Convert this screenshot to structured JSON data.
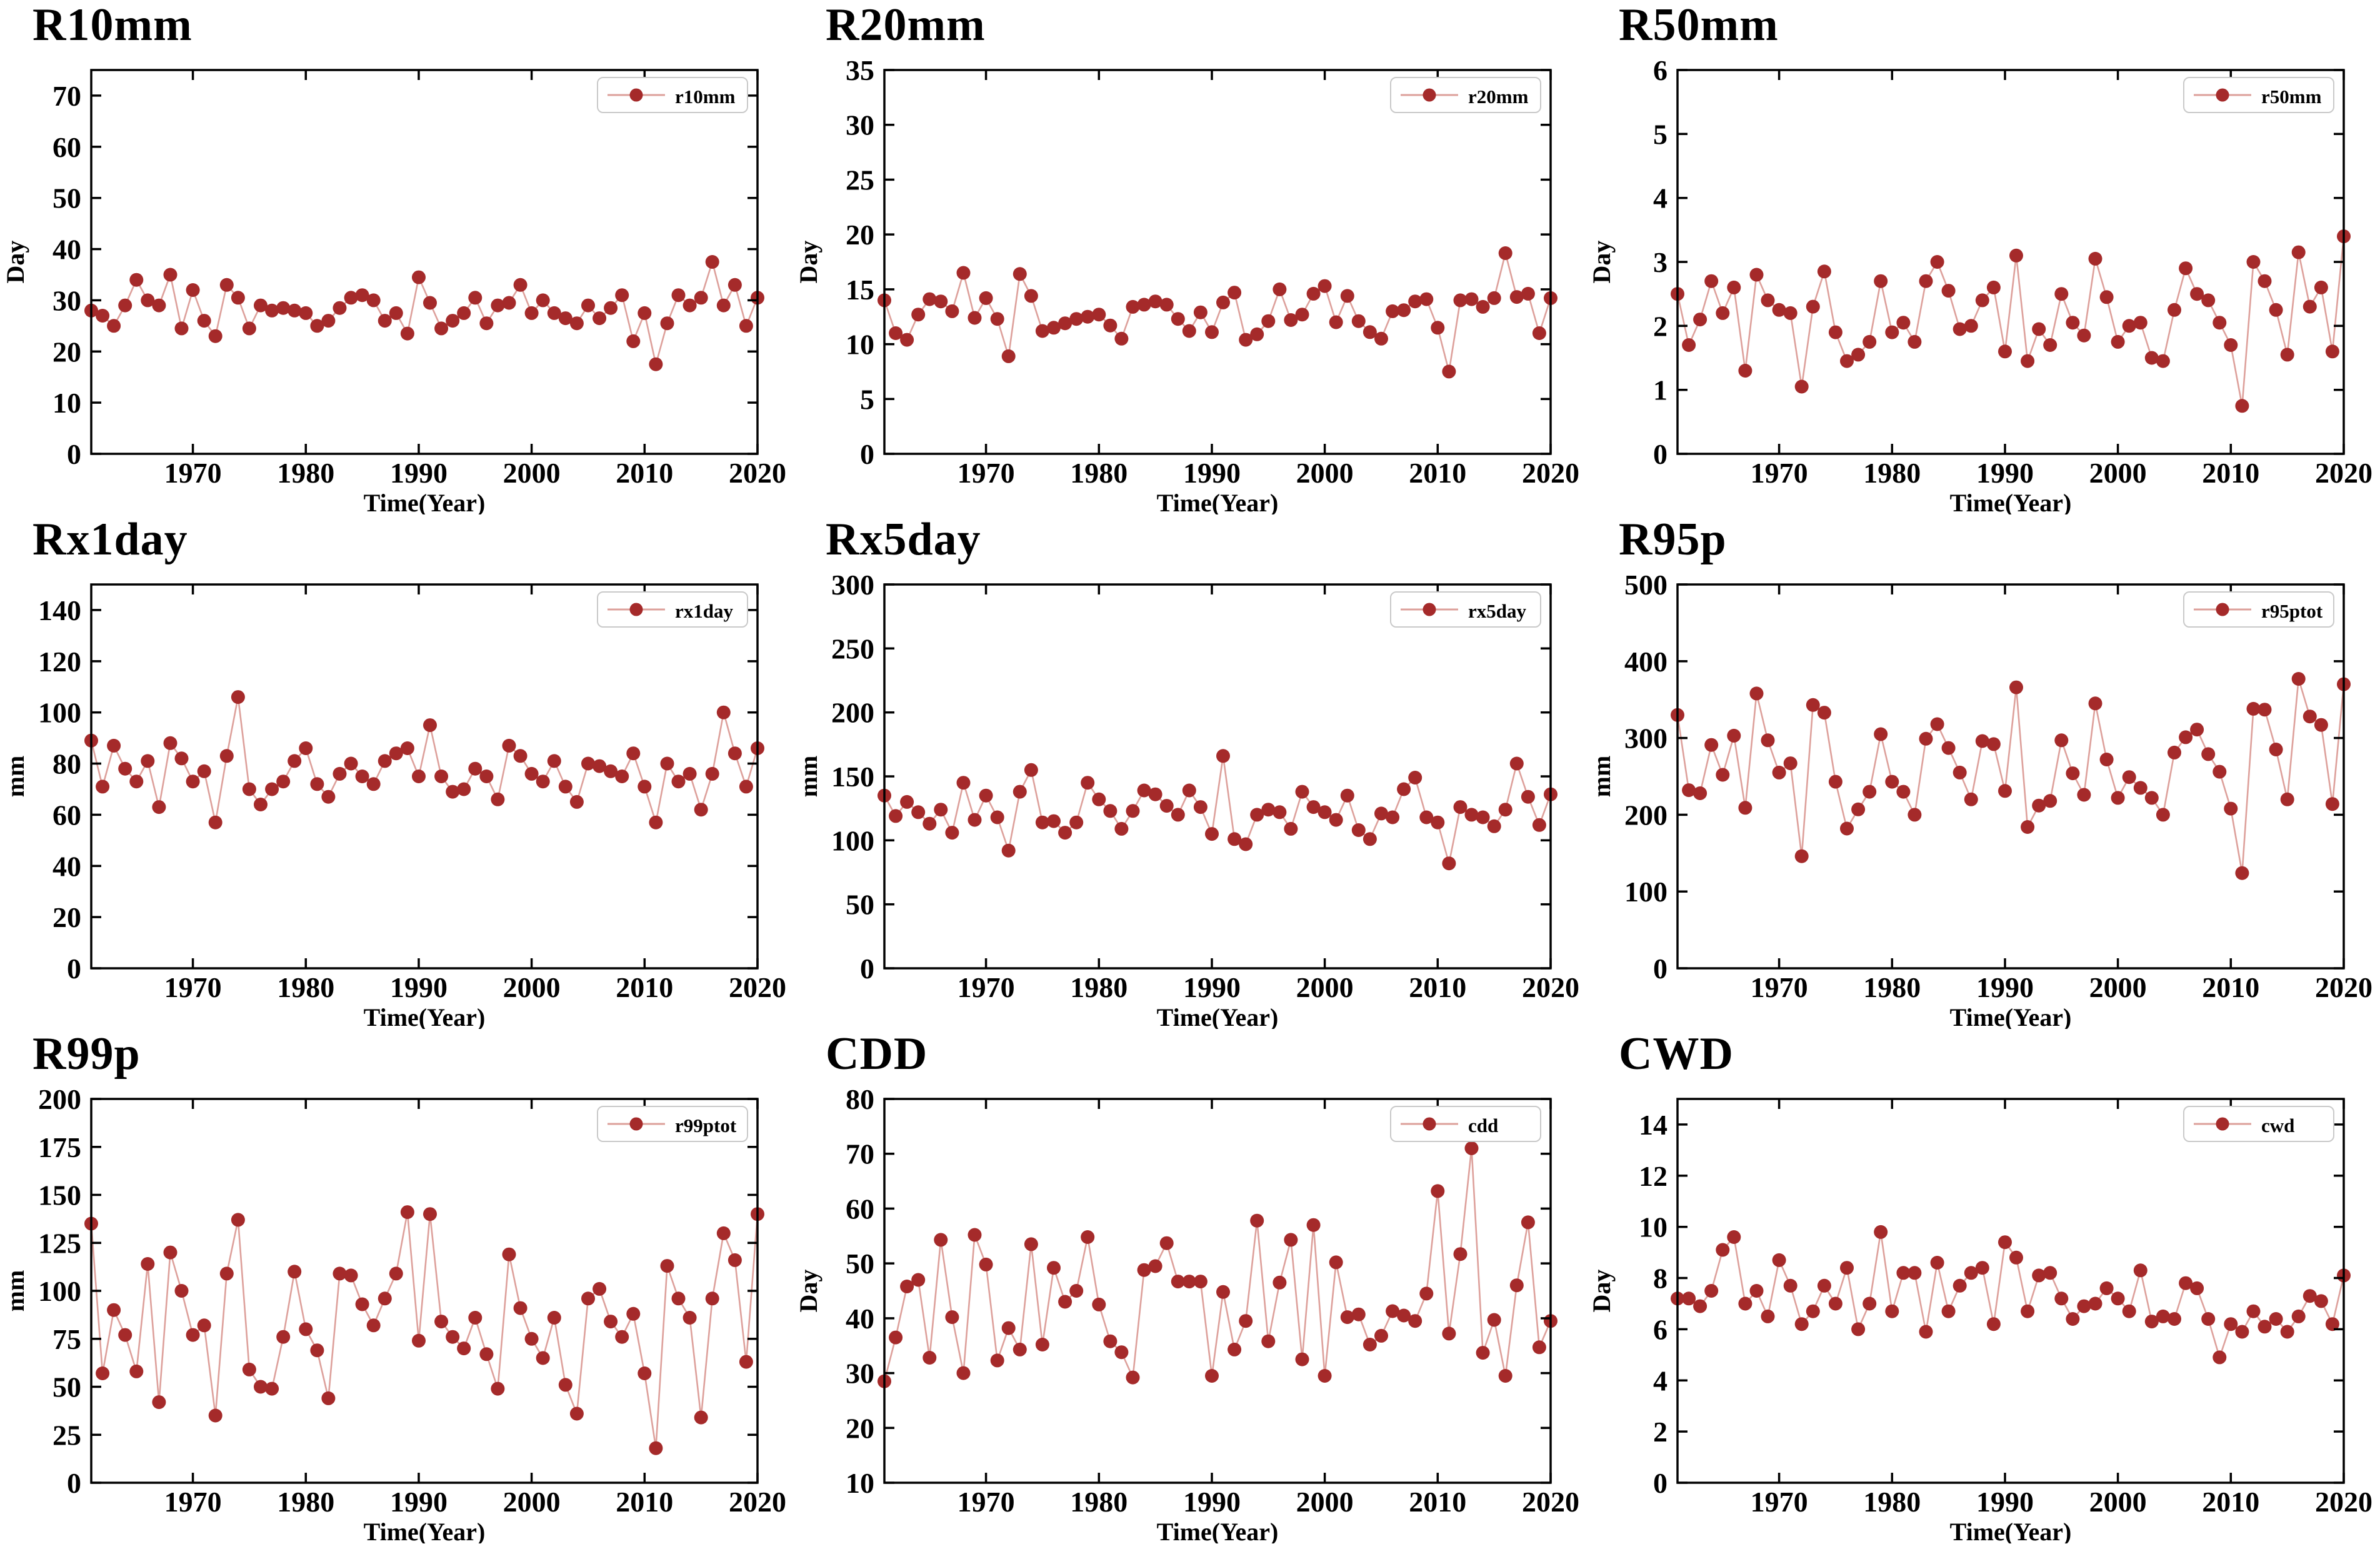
{
  "style": {
    "marker_color": "#A52A2A",
    "line_color": "#DDA09B",
    "axis_color": "#000000",
    "legend_border_color": "#C9C9C9",
    "background": "#FFFFFF"
  },
  "chart_data": {
    "type": "line",
    "xlabel": "Time(Year)",
    "x_range": [
      1961,
      2020
    ],
    "x_ticks": [
      1970,
      1980,
      1990,
      2000,
      2010,
      2020
    ],
    "grid": false,
    "legend_position": "top-right",
    "years": [
      1961,
      1962,
      1963,
      1964,
      1965,
      1966,
      1967,
      1968,
      1969,
      1970,
      1971,
      1972,
      1973,
      1974,
      1975,
      1976,
      1977,
      1978,
      1979,
      1980,
      1981,
      1982,
      1983,
      1984,
      1985,
      1986,
      1987,
      1988,
      1989,
      1990,
      1991,
      1992,
      1993,
      1994,
      1995,
      1996,
      1997,
      1998,
      1999,
      2000,
      2001,
      2002,
      2003,
      2004,
      2005,
      2006,
      2007,
      2008,
      2009,
      2010,
      2011,
      2012,
      2013,
      2014,
      2015,
      2016,
      2017,
      2018,
      2019,
      2020
    ],
    "charts": [
      {
        "id": "r10mm",
        "title": "R10mm",
        "legend": "r10mm",
        "ylabel": "Day",
        "ylim": [
          0,
          75
        ],
        "yticks": [
          0,
          10,
          20,
          30,
          40,
          50,
          60,
          70
        ],
        "values": [
          28,
          27,
          25,
          29,
          34,
          30,
          29,
          35,
          24.5,
          32,
          26,
          23,
          33,
          30.5,
          24.5,
          29,
          28,
          28.5,
          28,
          27.5,
          25,
          26,
          28.5,
          30.5,
          31,
          30,
          26,
          27.5,
          23.5,
          34.5,
          29.5,
          24.5,
          26,
          27.5,
          30.5,
          25.5,
          29,
          29.5,
          33,
          27.5,
          30,
          27.5,
          26.5,
          25.5,
          29,
          26.5,
          28.5,
          31,
          22,
          27.5,
          17.5,
          25.5,
          31,
          29,
          30.5,
          37.5,
          29,
          33,
          25,
          30.5
        ]
      },
      {
        "id": "r20mm",
        "title": "R20mm",
        "legend": "r20mm",
        "ylabel": "Day",
        "ylim": [
          0,
          35
        ],
        "yticks": [
          0,
          5,
          10,
          15,
          20,
          25,
          30,
          35
        ],
        "values": [
          14,
          11,
          10.4,
          12.7,
          14.1,
          13.9,
          13,
          16.5,
          12.4,
          14.2,
          12.3,
          8.9,
          16.4,
          14.4,
          11.2,
          11.5,
          11.9,
          12.3,
          12.5,
          12.7,
          11.7,
          10.5,
          13.4,
          13.6,
          13.9,
          13.6,
          12.3,
          11.2,
          12.9,
          11.1,
          13.8,
          14.7,
          10.4,
          10.9,
          12.1,
          15,
          12.2,
          12.7,
          14.6,
          15.3,
          12,
          14.4,
          12.1,
          11.1,
          10.5,
          13,
          13.1,
          13.9,
          14.1,
          11.5,
          7.5,
          14,
          14.1,
          13.4,
          14.2,
          18.3,
          14.3,
          14.6,
          11,
          14.2
        ]
      },
      {
        "id": "r50mm",
        "title": "R50mm",
        "legend": "r50mm",
        "ylabel": "Day",
        "ylim": [
          0,
          6
        ],
        "yticks": [
          0,
          1,
          2,
          3,
          4,
          5,
          6
        ],
        "values": [
          2.5,
          1.7,
          2.1,
          2.7,
          2.2,
          2.6,
          1.3,
          2.8,
          2.4,
          2.25,
          2.2,
          1.05,
          2.3,
          2.85,
          1.9,
          1.45,
          1.55,
          1.75,
          2.7,
          1.9,
          2.05,
          1.75,
          2.7,
          3.0,
          2.55,
          1.95,
          2.0,
          2.4,
          2.6,
          1.6,
          3.1,
          1.45,
          1.95,
          1.7,
          2.5,
          2.05,
          1.85,
          3.05,
          2.45,
          1.75,
          2.0,
          2.05,
          1.5,
          1.45,
          2.25,
          2.9,
          2.5,
          2.4,
          2.05,
          1.7,
          0.75,
          3.0,
          2.7,
          2.25,
          1.55,
          3.15,
          2.3,
          2.6,
          1.6,
          3.4
        ]
      },
      {
        "id": "rx1day",
        "title": "Rx1day",
        "legend": "rx1day",
        "ylabel": "mm",
        "ylim": [
          0,
          150
        ],
        "yticks": [
          0,
          20,
          40,
          60,
          80,
          100,
          120,
          140
        ],
        "values": [
          89,
          71,
          87,
          78,
          73,
          81,
          63,
          88,
          82,
          73,
          77,
          57,
          83,
          106,
          70,
          64,
          70,
          73,
          81,
          86,
          72,
          67,
          76,
          80,
          75,
          72,
          81,
          84,
          86,
          75,
          95,
          75,
          69,
          70,
          78,
          75,
          66,
          87,
          83,
          76,
          73,
          81,
          71,
          65,
          80,
          79,
          77,
          75,
          84,
          71,
          57,
          80,
          73,
          76,
          62,
          76,
          100,
          84,
          71,
          86
        ]
      },
      {
        "id": "rx5day",
        "title": "Rx5day",
        "legend": "rx5day",
        "ylabel": "mm",
        "ylim": [
          0,
          300
        ],
        "yticks": [
          0,
          50,
          100,
          150,
          200,
          250,
          300
        ],
        "values": [
          135,
          119,
          130,
          122,
          113,
          124,
          106,
          145,
          116,
          135,
          118,
          92,
          138,
          155,
          114,
          115,
          106,
          114,
          145,
          132,
          123,
          109,
          123,
          139,
          136,
          127,
          120,
          139,
          126,
          105,
          166,
          101,
          97,
          120,
          124,
          122,
          109,
          138,
          126,
          122,
          116,
          135,
          108,
          101,
          121,
          118,
          140,
          149,
          118,
          114,
          82,
          126,
          120,
          118,
          111,
          124,
          160,
          134,
          112,
          136
        ]
      },
      {
        "id": "r95p",
        "title": "R95p",
        "legend": "r95ptot",
        "ylabel": "mm",
        "ylim": [
          0,
          500
        ],
        "yticks": [
          0,
          100,
          200,
          300,
          400,
          500
        ],
        "values": [
          330,
          232,
          228,
          291,
          252,
          303,
          209,
          358,
          297,
          255,
          267,
          146,
          343,
          333,
          243,
          182,
          207,
          230,
          305,
          243,
          230,
          200,
          299,
          318,
          287,
          255,
          220,
          296,
          292,
          231,
          366,
          184,
          212,
          218,
          297,
          254,
          226,
          345,
          272,
          222,
          249,
          235,
          222,
          200,
          281,
          301,
          311,
          279,
          256,
          208,
          124,
          338,
          337,
          285,
          220,
          377,
          328,
          317,
          214,
          370
        ]
      },
      {
        "id": "r99p",
        "title": "R99p",
        "legend": "r99ptot",
        "ylabel": "mm",
        "ylim": [
          0,
          200
        ],
        "yticks": [
          0,
          25,
          50,
          75,
          100,
          125,
          150,
          175,
          200
        ],
        "values": [
          135,
          57,
          90,
          77,
          58,
          114,
          42,
          120,
          100,
          77,
          82,
          35,
          109,
          137,
          59,
          50,
          49,
          76,
          110,
          80,
          69,
          44,
          109,
          108,
          93,
          82,
          96,
          109,
          141,
          74,
          140,
          84,
          76,
          70,
          86,
          67,
          49,
          119,
          91,
          75,
          65,
          86,
          51,
          36,
          96,
          101,
          84,
          76,
          88,
          57,
          18,
          113,
          96,
          86,
          34,
          96,
          130,
          116,
          63,
          140
        ]
      },
      {
        "id": "cdd",
        "title": "CDD",
        "legend": "cdd",
        "ylabel": "Day",
        "ylim": [
          10,
          80
        ],
        "yticks": [
          10,
          20,
          30,
          40,
          50,
          60,
          70,
          80
        ],
        "values": [
          28.5,
          36.5,
          45.8,
          47,
          32.8,
          54.3,
          40.2,
          30,
          55.2,
          49.8,
          32.3,
          38.2,
          34.3,
          53.5,
          35.2,
          49.2,
          43,
          45,
          54.8,
          42.5,
          35.8,
          33.8,
          29.2,
          48.8,
          49.5,
          53.7,
          46.7,
          46.7,
          46.7,
          29.5,
          44.8,
          34.3,
          39.5,
          57.8,
          35.8,
          46.5,
          54.3,
          32.5,
          57,
          29.5,
          50.2,
          40.2,
          40.7,
          35.2,
          36.8,
          41.3,
          40.5,
          39.5,
          44.5,
          63.2,
          37.2,
          51.7,
          71,
          33.7,
          39.7,
          29.5,
          46,
          57.5,
          34.7,
          39.5
        ]
      },
      {
        "id": "cwd",
        "title": "CWD",
        "legend": "cwd",
        "ylabel": "Day",
        "ylim": [
          0,
          15
        ],
        "yticks": [
          0,
          2,
          4,
          6,
          8,
          10,
          12,
          14
        ],
        "values": [
          7.2,
          7.2,
          6.9,
          7.5,
          9.1,
          9.6,
          7.0,
          7.5,
          6.5,
          8.7,
          7.7,
          6.2,
          6.7,
          7.7,
          7.0,
          8.4,
          6.0,
          7.0,
          9.8,
          6.7,
          8.2,
          8.2,
          5.9,
          8.6,
          6.7,
          7.7,
          8.2,
          8.4,
          6.2,
          9.4,
          8.8,
          6.7,
          8.1,
          8.2,
          7.2,
          6.4,
          6.9,
          7.0,
          7.6,
          7.2,
          6.7,
          8.3,
          6.3,
          6.5,
          6.4,
          7.8,
          7.6,
          6.4,
          4.9,
          6.2,
          5.9,
          6.7,
          6.1,
          6.4,
          5.9,
          6.5,
          7.3,
          7.1,
          6.2,
          8.1
        ]
      }
    ]
  }
}
